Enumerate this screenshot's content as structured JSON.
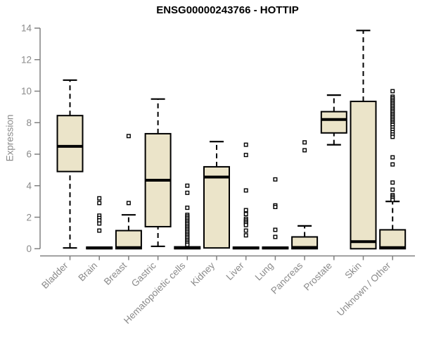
{
  "chart_data": {
    "type": "boxplot",
    "title": "ENSG00000243766 - HOTTIP",
    "ylabel": "Expression",
    "ylim": [
      0,
      14
    ],
    "yticks": [
      0,
      2,
      4,
      6,
      8,
      10,
      12,
      14
    ],
    "grid": false,
    "colors": {
      "box_fill": "#EBE4C9",
      "box_stroke": "#000000",
      "axis": "#808080",
      "tick_label": "#8a8a8a",
      "title": "#000000"
    },
    "categories": [
      "Bladder",
      "Brain",
      "Breast",
      "Gastric",
      "Hematopoietic cells",
      "Kidney",
      "Liver",
      "Lung",
      "Pancreas",
      "Prostate",
      "Skin",
      "Unknown / Other"
    ],
    "boxes": [
      {
        "category": "Bladder",
        "low": 0.05,
        "q1": 4.9,
        "median": 6.5,
        "q3": 8.45,
        "high": 10.7,
        "outliers": []
      },
      {
        "category": "Brain",
        "low": 0,
        "q1": 0,
        "median": 0.05,
        "q3": 0.1,
        "high": 0.15,
        "outliers": [
          3.2,
          2.9,
          2.1,
          1.95,
          1.8,
          1.6,
          1.15
        ]
      },
      {
        "category": "Breast",
        "low": 0,
        "q1": 0,
        "median": 0.07,
        "q3": 1.15,
        "high": 2.15,
        "outliers": [
          7.15,
          2.9
        ]
      },
      {
        "category": "Gastric",
        "low": 0.15,
        "q1": 1.4,
        "median": 4.35,
        "q3": 7.3,
        "high": 9.5,
        "outliers": []
      },
      {
        "category": "Hematopoietic cells",
        "low": 0,
        "q1": 0,
        "median": 0.05,
        "q3": 0.12,
        "high": 0.2,
        "outliers": [
          4.0,
          3.55,
          2.6,
          2.15,
          2.05,
          1.95,
          1.85,
          1.75,
          1.65,
          1.55,
          1.45,
          1.35,
          1.25,
          1.15,
          1.05,
          0.95,
          0.85,
          0.75,
          0.65,
          0.55,
          0.45,
          0.35,
          0.25
        ]
      },
      {
        "category": "Kidney",
        "low": 0,
        "q1": 0.05,
        "median": 4.55,
        "q3": 5.2,
        "high": 6.8,
        "outliers": []
      },
      {
        "category": "Liver",
        "low": 0,
        "q1": 0,
        "median": 0.05,
        "q3": 0.1,
        "high": 0.15,
        "outliers": [
          6.6,
          5.95,
          3.7,
          2.45,
          2.2,
          1.9,
          1.8,
          1.7,
          1.6,
          1.5,
          1.15,
          0.85
        ]
      },
      {
        "category": "Lung",
        "low": 0,
        "q1": 0,
        "median": 0.05,
        "q3": 0.1,
        "high": 0.15,
        "outliers": [
          4.4,
          2.75,
          2.65,
          1.2,
          0.75
        ]
      },
      {
        "category": "Pancreas",
        "low": 0,
        "q1": 0,
        "median": 0.08,
        "q3": 0.75,
        "high": 1.45,
        "outliers": [
          6.75,
          6.25
        ]
      },
      {
        "category": "Prostate",
        "low": 6.6,
        "q1": 7.35,
        "median": 8.2,
        "q3": 8.7,
        "high": 9.75,
        "outliers": []
      },
      {
        "category": "Skin",
        "low": 0,
        "q1": 0,
        "median": 0.45,
        "q3": 9.35,
        "high": 13.85,
        "outliers": []
      },
      {
        "category": "Unknown / Other",
        "low": 0,
        "q1": 0,
        "median": 0.07,
        "q3": 1.2,
        "high": 3.0,
        "outliers": [
          10.0,
          9.65,
          9.55,
          9.45,
          9.35,
          9.25,
          9.15,
          9.05,
          8.95,
          8.85,
          8.75,
          8.65,
          8.55,
          8.45,
          8.35,
          8.25,
          8.15,
          8.05,
          7.95,
          7.85,
          7.7,
          7.55,
          7.4,
          7.25,
          7.1,
          5.8,
          5.35,
          4.2,
          3.75,
          3.4,
          3.3,
          3.2,
          3.1
        ]
      }
    ]
  }
}
